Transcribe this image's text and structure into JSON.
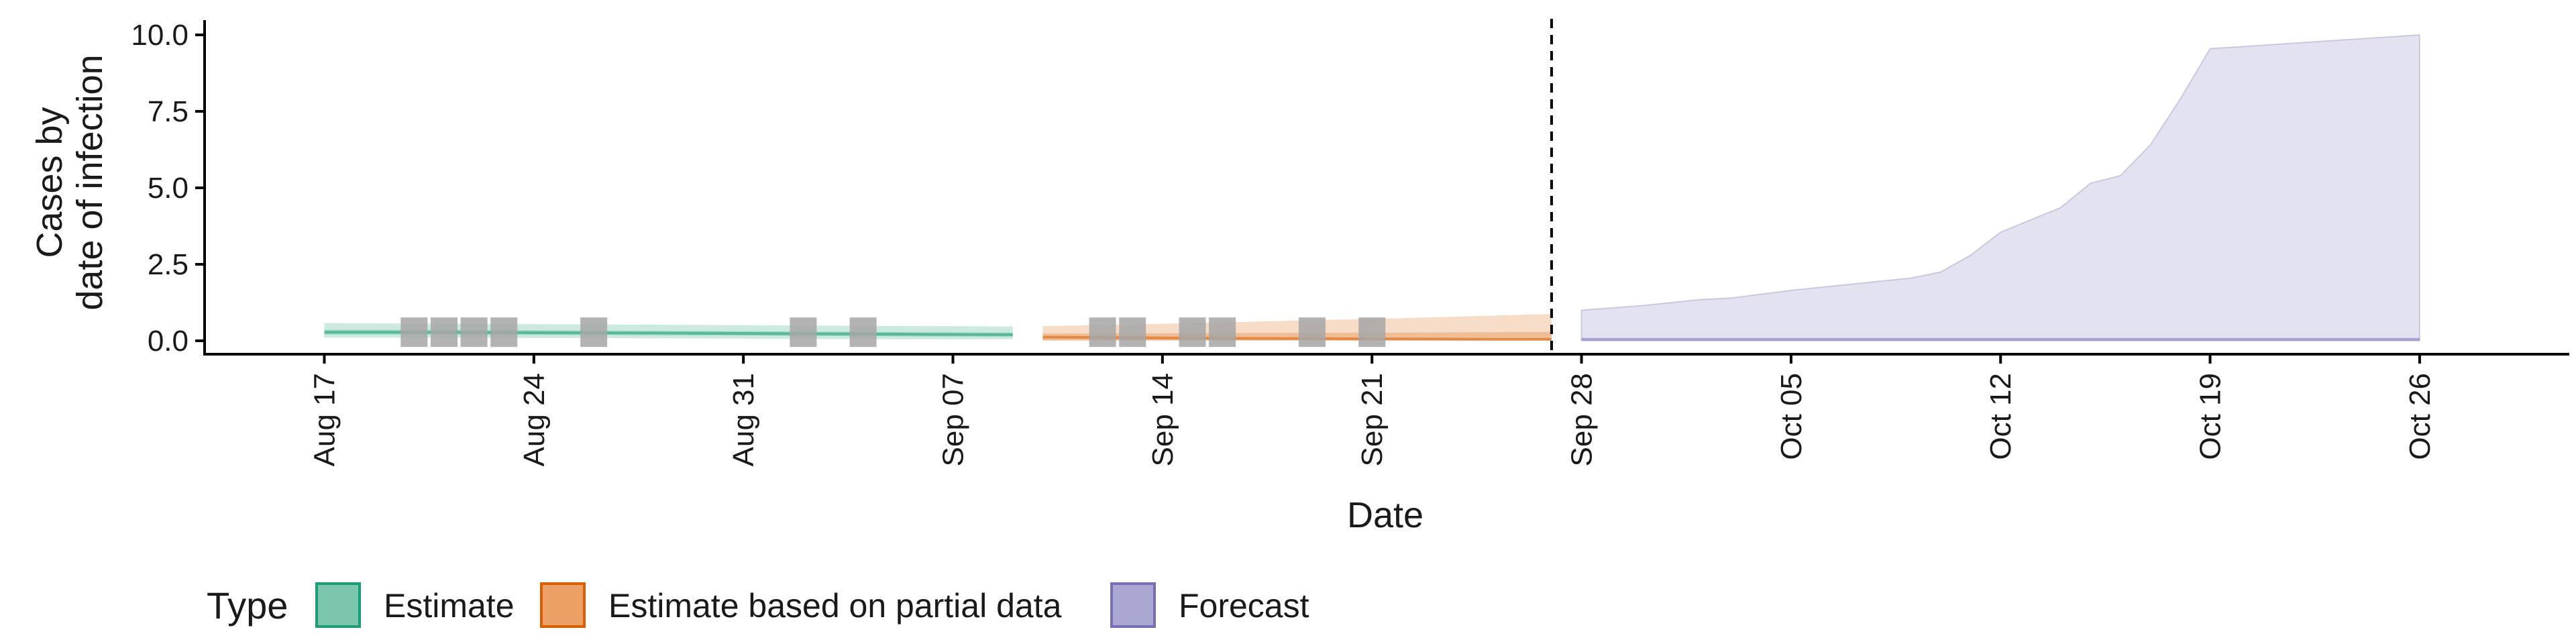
{
  "chart_data": {
    "type": "area",
    "title": "",
    "xlabel": "Date",
    "ylabel_lines": [
      "Cases by",
      "date of infection"
    ],
    "ylim": [
      0,
      10
    ],
    "y_ticks": [
      "0.0",
      "2.5",
      "5.0",
      "7.5",
      "10.0"
    ],
    "x_ticks": [
      {
        "date": "2020-08-17",
        "label": "Aug 17"
      },
      {
        "date": "2020-08-24",
        "label": "Aug 24"
      },
      {
        "date": "2020-08-31",
        "label": "Aug 31"
      },
      {
        "date": "2020-09-07",
        "label": "Sep 07"
      },
      {
        "date": "2020-09-14",
        "label": "Sep 14"
      },
      {
        "date": "2020-09-21",
        "label": "Sep 21"
      },
      {
        "date": "2020-09-28",
        "label": "Sep 28"
      },
      {
        "date": "2020-10-05",
        "label": "Oct 05"
      },
      {
        "date": "2020-10-12",
        "label": "Oct 12"
      },
      {
        "date": "2020-10-19",
        "label": "Oct 19"
      },
      {
        "date": "2020-10-26",
        "label": "Oct 26"
      }
    ],
    "xlim": [
      "2020-08-13",
      "2020-10-31"
    ],
    "vline_date": "2020-09-27",
    "legend": {
      "title": "Type",
      "position": "bottom",
      "entries": [
        {
          "label": "Estimate",
          "fill": "#7cc6ad",
          "stroke": "#1b9e77"
        },
        {
          "label": "Estimate based on partial data",
          "fill": "#eca066",
          "stroke": "#d95f02"
        },
        {
          "label": "Forecast",
          "fill": "#aaa7d2",
          "stroke": "#7570b3"
        }
      ]
    },
    "series": [
      {
        "type": "Estimate",
        "fill": "#1b9e77",
        "x": [
          "2020-08-17",
          "2020-08-21",
          "2020-08-25",
          "2020-08-29",
          "2020-09-02",
          "2020-09-06",
          "2020-09-09"
        ],
        "lower": [
          0.1,
          0.1,
          0.09,
          0.08,
          0.06,
          0.05,
          0.05
        ],
        "upper": [
          0.58,
          0.56,
          0.54,
          0.52,
          0.5,
          0.48,
          0.47
        ],
        "inner_lower": [
          0.2,
          0.2,
          0.19,
          0.18,
          0.16,
          0.14,
          0.13
        ],
        "inner_upper": [
          0.36,
          0.36,
          0.34,
          0.32,
          0.3,
          0.28,
          0.27
        ],
        "median": [
          0.28,
          0.28,
          0.26,
          0.25,
          0.23,
          0.21,
          0.2
        ]
      },
      {
        "type": "Estimate based on partial data",
        "fill": "#d95f02",
        "x": [
          "2020-09-10",
          "2020-09-13",
          "2020-09-16",
          "2020-09-19",
          "2020-09-22",
          "2020-09-25",
          "2020-09-27"
        ],
        "lower": [
          0.0,
          0.0,
          0.0,
          0.0,
          0.0,
          0.0,
          0.0
        ],
        "upper": [
          0.48,
          0.53,
          0.6,
          0.67,
          0.74,
          0.82,
          0.88
        ],
        "inner_lower": [
          0.02,
          0.02,
          0.02,
          0.02,
          0.02,
          0.02,
          0.02
        ],
        "inner_upper": [
          0.24,
          0.24,
          0.25,
          0.26,
          0.27,
          0.28,
          0.29
        ],
        "median": [
          0.12,
          0.1,
          0.08,
          0.07,
          0.06,
          0.05,
          0.05
        ]
      },
      {
        "type": "Forecast",
        "fill": "#7570b3",
        "x": [
          "2020-09-28",
          "2020-09-30",
          "2020-10-02",
          "2020-10-03",
          "2020-10-05",
          "2020-10-07",
          "2020-10-09",
          "2020-10-10",
          "2020-10-12",
          "2020-10-14",
          "2020-10-15",
          "2020-10-16",
          "2020-10-17",
          "2020-10-18",
          "2020-10-19",
          "2020-10-20",
          "2020-10-26"
        ],
        "lower": [
          0,
          0,
          0,
          0,
          0,
          0,
          0,
          0,
          0,
          0,
          0,
          0,
          0,
          0,
          0,
          0,
          0
        ],
        "upper": [
          1.0,
          1.15,
          1.35,
          1.4,
          1.65,
          1.85,
          2.05,
          2.25,
          2.8,
          3.55,
          4.35,
          5.15,
          5.4,
          6.4,
          7.9,
          9.55,
          10.0
        ],
        "upper_x_override": [
          "2020-09-28",
          "2020-09-30",
          "2020-10-02",
          "2020-10-03",
          "2020-10-05",
          "2020-10-07",
          "2020-10-09",
          "2020-10-10",
          "2020-10-11",
          "2020-10-12",
          "2020-10-14",
          "2020-10-15",
          "2020-10-16",
          "2020-10-17",
          "2020-10-18",
          "2020-10-19",
          "2020-10-26"
        ],
        "median": [
          0.05,
          0.05,
          0.05,
          0.05,
          0.05,
          0.05,
          0.05,
          0.05,
          0.05,
          0.05,
          0.05,
          0.05,
          0.05,
          0.05,
          0.05,
          0.05,
          0.05
        ]
      }
    ],
    "observed": {
      "fill": "#a6a6a6",
      "points": [
        {
          "date": "2020-08-20",
          "value": 0.5
        },
        {
          "date": "2020-08-21",
          "value": 0.5
        },
        {
          "date": "2020-08-22",
          "value": 0.5
        },
        {
          "date": "2020-08-23",
          "value": 0.5
        },
        {
          "date": "2020-08-26",
          "value": 0.5
        },
        {
          "date": "2020-09-02",
          "value": 0.5
        },
        {
          "date": "2020-09-04",
          "value": 0.5
        },
        {
          "date": "2020-09-12",
          "value": 0.5
        },
        {
          "date": "2020-09-13",
          "value": 0.5
        },
        {
          "date": "2020-09-15",
          "value": 0.5
        },
        {
          "date": "2020-09-16",
          "value": 0.5
        },
        {
          "date": "2020-09-19",
          "value": 0.5
        },
        {
          "date": "2020-09-21",
          "value": 0.5
        }
      ]
    }
  }
}
